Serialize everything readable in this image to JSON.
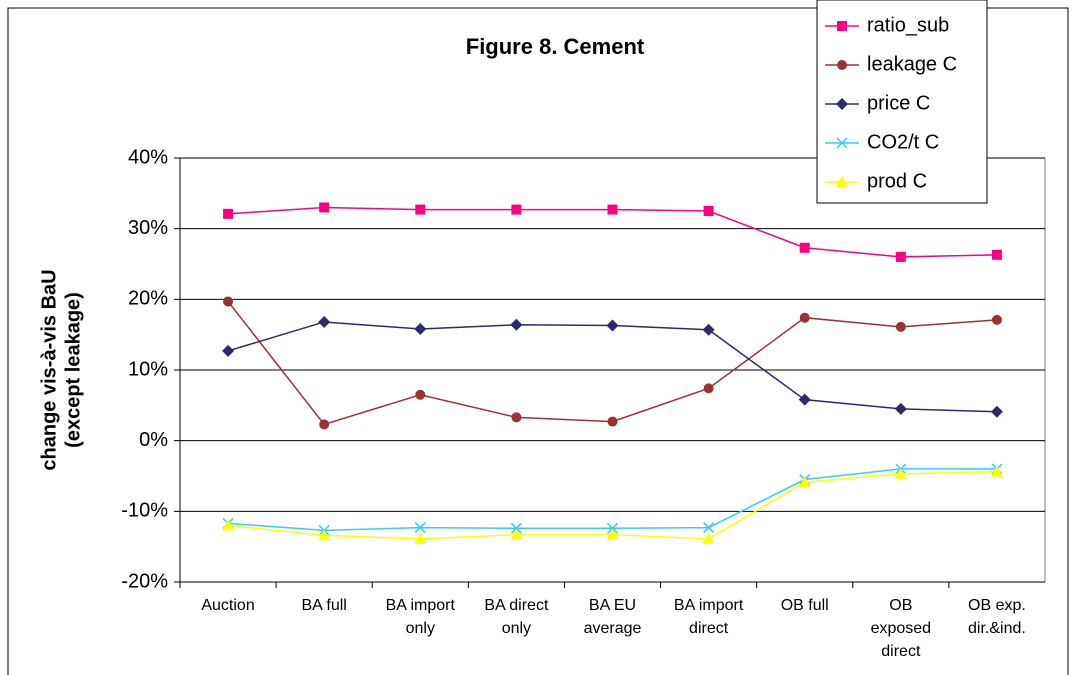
{
  "chart_data": {
    "type": "line",
    "title": "Figure 8. Cement",
    "ylabel": [
      "change vis-à-vis BaU",
      "(except leakage)"
    ],
    "categories": [
      [
        "Auction"
      ],
      [
        "BA full"
      ],
      [
        "BA import",
        "only"
      ],
      [
        "BA direct",
        "only"
      ],
      [
        "BA EU",
        "average"
      ],
      [
        "BA import",
        "direct"
      ],
      [
        "OB full"
      ],
      [
        "OB",
        "exposed",
        "direct"
      ],
      [
        "OB exp.",
        "dir.&ind."
      ]
    ],
    "series": [
      {
        "name": "ratio_sub",
        "color": "#ff0080",
        "marker": "square",
        "values": [
          32.1,
          33.0,
          32.7,
          32.7,
          32.7,
          32.5,
          27.3,
          26.0,
          26.3
        ]
      },
      {
        "name": "leakage C",
        "color": "#993333",
        "marker": "circle",
        "values": [
          19.7,
          2.3,
          6.5,
          3.3,
          2.7,
          7.4,
          17.4,
          16.1,
          17.1
        ]
      },
      {
        "name": "price C",
        "color": "#2b2b6b",
        "marker": "diamond",
        "values": [
          12.7,
          16.8,
          15.8,
          16.4,
          16.3,
          15.7,
          5.8,
          4.5,
          4.1
        ]
      },
      {
        "name": "CO2/t C",
        "color": "#33ccff",
        "marker": "x",
        "values": [
          -11.7,
          -12.7,
          -12.3,
          -12.4,
          -12.4,
          -12.3,
          -5.5,
          -4.0,
          -4.0
        ]
      },
      {
        "name": "prod C",
        "color": "#ffff00",
        "marker": "triangle",
        "values": [
          -12.0,
          -13.4,
          -13.9,
          -13.3,
          -13.3,
          -13.9,
          -5.9,
          -4.7,
          -4.4
        ]
      }
    ],
    "ylim": [
      -20,
      40
    ],
    "yticks": [
      {
        "value": -20,
        "label": "-20%"
      },
      {
        "value": -10,
        "label": "-10%"
      },
      {
        "value": 0,
        "label": "0%"
      },
      {
        "value": 10,
        "label": "10%"
      },
      {
        "value": 20,
        "label": "20%"
      },
      {
        "value": 30,
        "label": "30%"
      },
      {
        "value": 40,
        "label": "40%"
      }
    ],
    "grid": true,
    "legend": "top-right"
  }
}
